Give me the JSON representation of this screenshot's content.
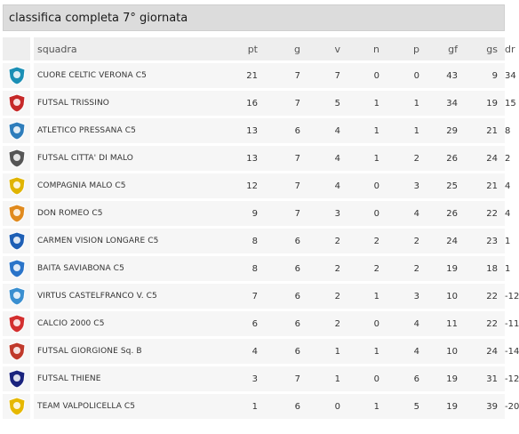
{
  "title": "classifica completa 7° giornata",
  "columns": {
    "squadra": "squadra",
    "pt": "pt",
    "g": "g",
    "v": "v",
    "n": "n",
    "p": "p",
    "gf": "gf",
    "gs": "gs",
    "dr": "dr"
  },
  "rows": [
    {
      "team": "CUORE CELTIC VERONA C5",
      "pt": "21",
      "g": "7",
      "v": "7",
      "n": "0",
      "p": "0",
      "gf": "43",
      "gs": "9",
      "dr": "34",
      "logo": "crest-heart-icon"
    },
    {
      "team": "FUTSAL TRISSINO",
      "pt": "16",
      "g": "7",
      "v": "5",
      "n": "1",
      "p": "1",
      "gf": "34",
      "gs": "19",
      "dr": "15",
      "logo": "crest-shield-icon"
    },
    {
      "team": "ATLETICO PRESSANA C5",
      "pt": "13",
      "g": "6",
      "v": "4",
      "n": "1",
      "p": "1",
      "gf": "29",
      "gs": "21",
      "dr": "8",
      "logo": "crest-ball-icon"
    },
    {
      "team": "FUTSAL CITTA' DI MALO",
      "pt": "13",
      "g": "7",
      "v": "4",
      "n": "1",
      "p": "2",
      "gf": "26",
      "gs": "24",
      "dr": "2",
      "logo": "crest-round-icon"
    },
    {
      "team": "COMPAGNIA MALO C5",
      "pt": "12",
      "g": "7",
      "v": "4",
      "n": "0",
      "p": "3",
      "gf": "25",
      "gs": "21",
      "dr": "4",
      "logo": "crest-star-icon"
    },
    {
      "team": "DON ROMEO C5",
      "pt": "9",
      "g": "7",
      "v": "3",
      "n": "0",
      "p": "4",
      "gf": "26",
      "gs": "22",
      "dr": "4",
      "logo": "crest-tiger-icon"
    },
    {
      "team": "CARMEN VISION LONGARE C5",
      "pt": "8",
      "g": "6",
      "v": "2",
      "n": "2",
      "p": "2",
      "gf": "24",
      "gs": "23",
      "dr": "1",
      "logo": "crest-shield-icon"
    },
    {
      "team": "BAITA SAVIABONA C5",
      "pt": "8",
      "g": "6",
      "v": "2",
      "n": "2",
      "p": "2",
      "gf": "19",
      "gs": "18",
      "dr": "1",
      "logo": "crest-shield-icon"
    },
    {
      "team": "VIRTUS CASTELFRANCO V. C5",
      "pt": "7",
      "g": "6",
      "v": "2",
      "n": "1",
      "p": "3",
      "gf": "10",
      "gs": "22",
      "dr": "-12",
      "logo": "crest-v-icon"
    },
    {
      "team": "CALCIO 2000 C5",
      "pt": "6",
      "g": "6",
      "v": "2",
      "n": "0",
      "p": "4",
      "gf": "11",
      "gs": "22",
      "dr": "-11",
      "logo": "crest-shield-icon"
    },
    {
      "team": "FUTSAL GIORGIONE Sq. B",
      "pt": "4",
      "g": "6",
      "v": "1",
      "n": "1",
      "p": "4",
      "gf": "10",
      "gs": "24",
      "dr": "-14",
      "logo": "crest-player-icon"
    },
    {
      "team": "FUTSAL THIENE",
      "pt": "3",
      "g": "7",
      "v": "1",
      "n": "0",
      "p": "6",
      "gf": "19",
      "gs": "31",
      "dr": "-12",
      "logo": "crest-stripes-icon"
    },
    {
      "team": "TEAM VALPOLICELLA C5",
      "pt": "1",
      "g": "6",
      "v": "0",
      "n": "1",
      "p": "5",
      "gf": "19",
      "gs": "39",
      "dr": "-20",
      "logo": "crest-shield-icon"
    }
  ],
  "colors": {
    "title_bg": "#dcdcdc",
    "header_bg": "#eeeeee",
    "row_bg": "#f6f6f6"
  }
}
